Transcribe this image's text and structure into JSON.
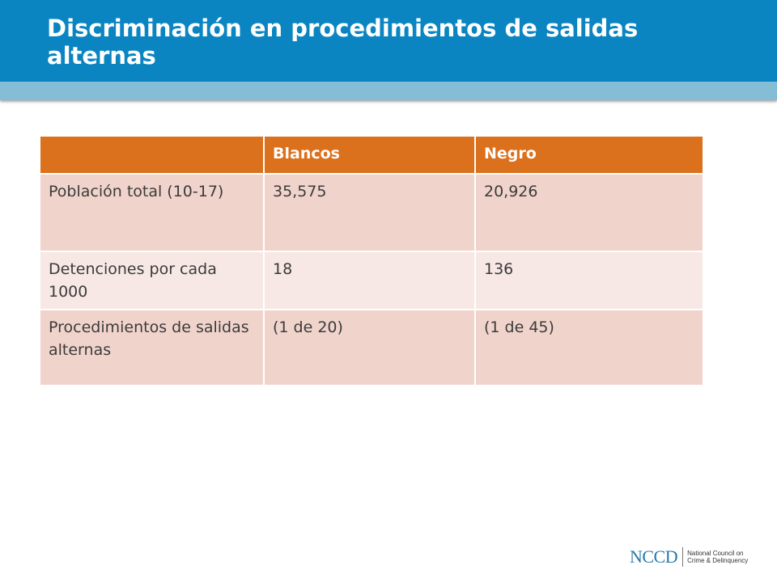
{
  "slide": {
    "title": "Discriminación en procedimientos de salidas alternas"
  },
  "table": {
    "headers": [
      "",
      "Blancos",
      "Negro"
    ],
    "rows": [
      [
        "Población total (10-17)",
        "35,575",
        "20,926"
      ],
      [
        "Detenciones por cada 1000",
        "18",
        "136"
      ],
      [
        "Procedimientos de salidas alternas",
        "(1 de 20)",
        "(1 de 45)"
      ]
    ]
  },
  "logo": {
    "mark": "NCCD",
    "line1": "National Council on",
    "line2": "Crime & Delinquency"
  },
  "colors": {
    "header_blue": "#0b85c1",
    "header_band": "#86bdd6",
    "table_header": "#db701d",
    "row_odd": "#f0d4cb",
    "row_even": "#f7e8e5"
  }
}
